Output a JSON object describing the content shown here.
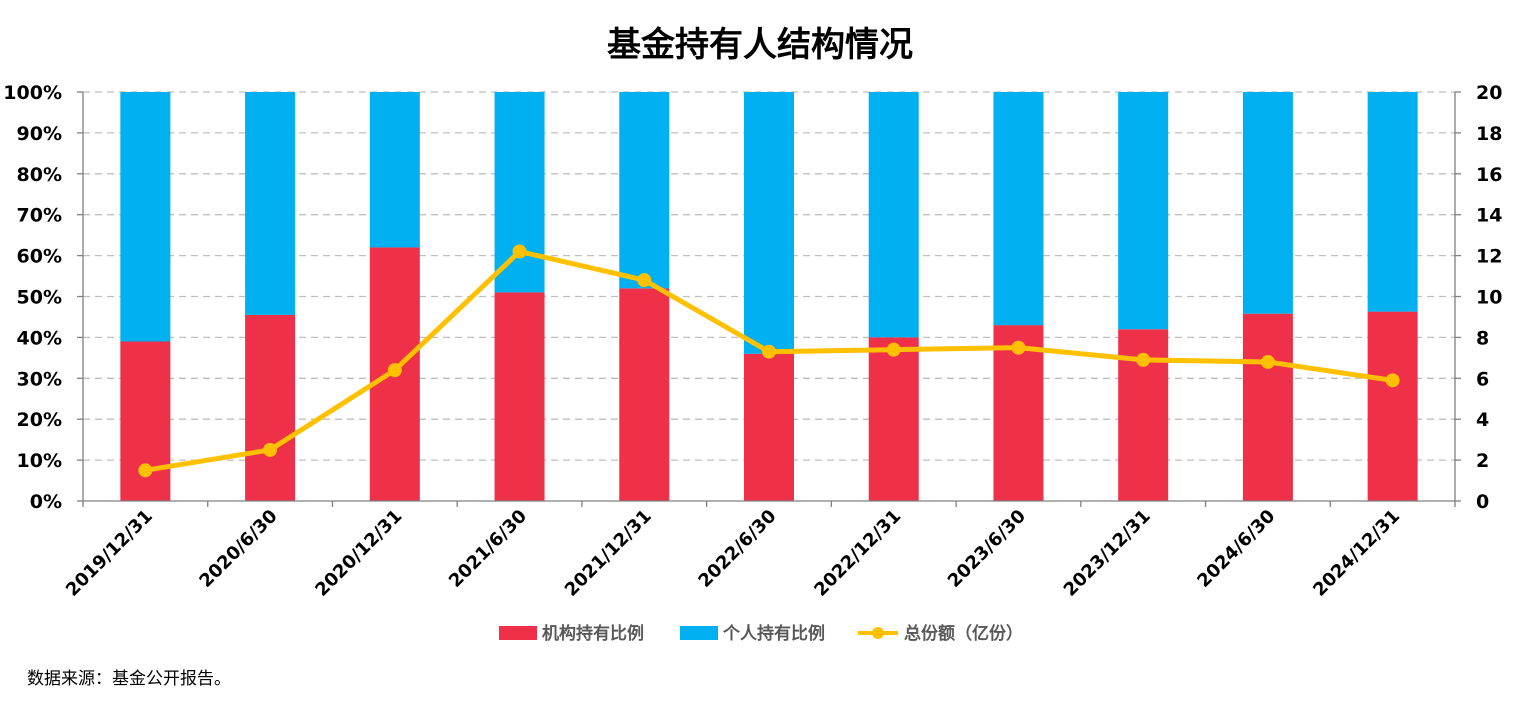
{
  "chart_data": {
    "type": "bar",
    "title": "基金持有人结构情况",
    "categories": [
      "2019/12/31",
      "2020/6/30",
      "2020/12/31",
      "2021/6/30",
      "2021/12/31",
      "2022/6/30",
      "2022/12/31",
      "2023/6/30",
      "2023/12/31",
      "2024/6/30",
      "2024/12/31"
    ],
    "series": [
      {
        "name": "机构持有比例",
        "kind": "stacked-bar",
        "axis": "left",
        "color": "#EE3049",
        "values": [
          39,
          45.5,
          62,
          51,
          52,
          36,
          40,
          43,
          42,
          45.8,
          46.3
        ]
      },
      {
        "name": "个人持有比例",
        "kind": "stacked-bar",
        "axis": "left",
        "color": "#00B0F0",
        "values": [
          61,
          54.5,
          38,
          49,
          48,
          64,
          60,
          57,
          58,
          54.2,
          53.7
        ]
      },
      {
        "name": "总份额（亿份）",
        "kind": "line",
        "axis": "right",
        "color": "#FFC000",
        "values": [
          1.5,
          2.5,
          6.4,
          12.2,
          10.8,
          7.3,
          7.4,
          7.5,
          6.9,
          6.8,
          5.9
        ]
      }
    ],
    "yleft": {
      "ticks": [
        "0%",
        "10%",
        "20%",
        "30%",
        "40%",
        "50%",
        "60%",
        "70%",
        "80%",
        "90%",
        "100%"
      ],
      "ylim": [
        0,
        100
      ]
    },
    "yright": {
      "ticks": [
        "0",
        "2",
        "4",
        "6",
        "8",
        "10",
        "12",
        "14",
        "16",
        "18",
        "20"
      ],
      "ylim": [
        0,
        20
      ]
    },
    "grid": "horizontal dashed",
    "legend": "bottom"
  },
  "source_note": "数据来源：基金公开报告。"
}
